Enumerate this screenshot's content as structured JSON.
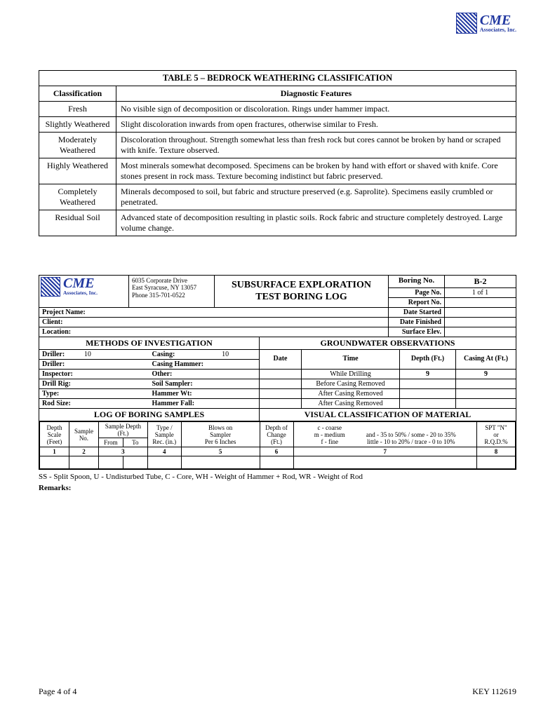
{
  "brand": {
    "name": "CME",
    "subtitle": "Associates, Inc."
  },
  "table5": {
    "title": "TABLE 5 – BEDROCK WEATHERING CLASSIFICATION",
    "columns": [
      "Classification",
      "Diagnostic Features"
    ],
    "rows": [
      {
        "cls": "Fresh",
        "desc": "No visible sign of decomposition or discoloration. Rings under hammer impact."
      },
      {
        "cls": "Slightly Weathered",
        "desc": "Slight discoloration inwards from open fractures, otherwise similar to Fresh."
      },
      {
        "cls": "Moderately Weathered",
        "desc": "Discoloration throughout. Strength somewhat less than fresh rock but cores cannot be broken by hand or scraped with knife. Texture observed."
      },
      {
        "cls": "Highly Weathered",
        "desc": "Most minerals somewhat decomposed. Specimens can be broken by hand with effort or shaved with knife. Core stones present in rock mass. Texture becoming indistinct but fabric preserved."
      },
      {
        "cls": "Completely Weathered",
        "desc": "Minerals decomposed to soil, but fabric and structure preserved (e.g. Saprolite). Specimens easily crumbled or penetrated."
      },
      {
        "cls": "Residual Soil",
        "desc": "Advanced state of decomposition resulting in plastic soils. Rock fabric and structure completely destroyed. Large volume change."
      }
    ]
  },
  "boringLog": {
    "address": {
      "line1": "6035 Corporate Drive",
      "line2": "East Syracuse, NY 13057",
      "line3": "Phone 315-701-0522"
    },
    "formTitle1": "SUBSURFACE EXPLORATION",
    "formTitle2": "TEST BORING LOG",
    "boringNoLabel": "Boring No.",
    "boringNoValue": "B-2",
    "pageNoLabel": "Page No.",
    "pageNoValue": "1 of 1",
    "reportNoLabel": "Report No.",
    "projectNameLabel": "Project Name:",
    "clientLabel": "Client:",
    "locationLabel": "Location:",
    "dateStartedLabel": "Date Started",
    "dateFinishedLabel": "Date Finished",
    "surfaceElevLabel": "Surface Elev.",
    "methodsHeader": "METHODS OF INVESTIGATION",
    "gwHeader": "GROUNDWATER OBSERVATIONS",
    "driller1Label": "Driller:",
    "driller1Value": "10",
    "casingLabel": "Casing:",
    "casingValue": "10",
    "driller2Label": "Driller:",
    "casingHammerLabel": "Casing Hammer:",
    "inspectorLabel": "Inspector:",
    "otherLabel": "Other:",
    "drillRigLabel": "Drill Rig:",
    "soilSamplerLabel": "Soil Sampler:",
    "typeLabel": "Type:",
    "hammerWtLabel": "Hammer Wt:",
    "rodSizeLabel": "Rod Size:",
    "hammerFallLabel": "Hammer Fall:",
    "gwDateLabel": "Date",
    "gwTimeLabel": "Time",
    "gwDepthLabel": "Depth (Ft.)",
    "gwCasingAtLabel": "Casing At (Ft.)",
    "gwRows": [
      {
        "time": "While Drilling",
        "depth": "9",
        "casing": "9"
      },
      {
        "time": "Before Casing Removed",
        "depth": "",
        "casing": ""
      },
      {
        "time": "After Casing Removed",
        "depth": "",
        "casing": ""
      },
      {
        "time": "After Casing Removed",
        "depth": "",
        "casing": ""
      }
    ],
    "logSamplesHeader": "LOG OF BORING SAMPLES",
    "visualClassHeader": "VISUAL CLASSIFICATION OF MATERIAL",
    "col1Label": "Depth\nScale\n(Feet)",
    "col2Label": "Sample\nNo.",
    "col3GroupLabel": "Sample Depth\n(Ft.)",
    "col3aLabel": "From",
    "col3bLabel": "To",
    "col4Label": "Type /\nSample\nRec. (in.)",
    "col5Label": "Blows on\nSampler\nPer 6 Inches",
    "col6Label": "Depth of\nChange\n(Ft.)",
    "col7Legend1": "c - coarse",
    "col7Legend2": "m - medium",
    "col7Legend3": "f - fine",
    "col7Legend4": "and - 35 to 50% / some - 20 to 35%",
    "col7Legend5": "little - 10 to 20% / trace - 0 to 10%",
    "col8Label": "SPT \"N\"\nor\nR.Q.D.%",
    "colNums": [
      "1",
      "2",
      "3",
      "3",
      "4",
      "5",
      "6",
      "7",
      "8"
    ],
    "legend": "SS - Split Spoon, U - Undisturbed Tube, C - Core, WH - Weight of Hammer + Rod, WR - Weight of Rod",
    "remarksLabel": "Remarks:"
  },
  "footer": {
    "left": "Page 4 of 4",
    "right": "KEY 112619"
  },
  "colors": {
    "brandBlue": "#2138a0",
    "text": "#000000",
    "background": "#ffffff"
  }
}
